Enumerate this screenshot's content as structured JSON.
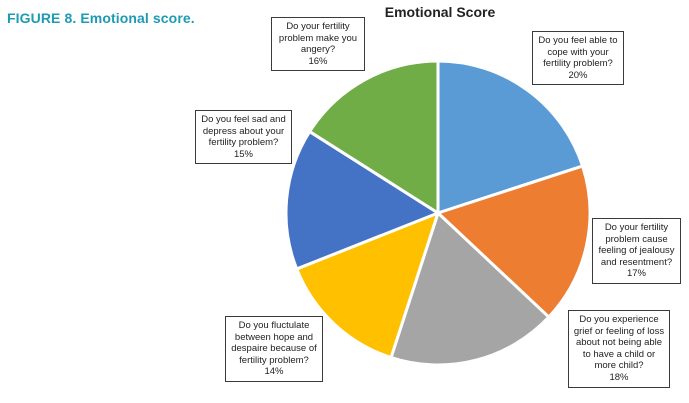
{
  "figure_caption": "FIGURE 8. Emotional score.",
  "chart_data": {
    "type": "pie",
    "title": "Emotional Score",
    "slices": [
      {
        "label": "Do you feel able to cope with your fertility problem?",
        "value": 20,
        "display": "20%",
        "color": "#5b9bd5"
      },
      {
        "label": "Do your fertility problem cause feeling of jealousy and resentment?",
        "value": 17,
        "display": "17%",
        "color": "#ed7d31"
      },
      {
        "label": "Do you experience grief or feeling of loss about not being able to have a child or more child?",
        "value": 18,
        "display": "18%",
        "color": "#a5a5a5"
      },
      {
        "label": "Do you fluctulate between hope and despaire because of fertility problem?",
        "value": 14,
        "display": "14%",
        "color": "#ffc000"
      },
      {
        "label": "Do you feel sad and depress about your fertility problem?",
        "value": 15,
        "display": "15%",
        "color": "#4472c4"
      },
      {
        "label": "Do your fertility problem make you angery?",
        "value": 16,
        "display": "16%",
        "color": "#70ad47"
      }
    ]
  }
}
